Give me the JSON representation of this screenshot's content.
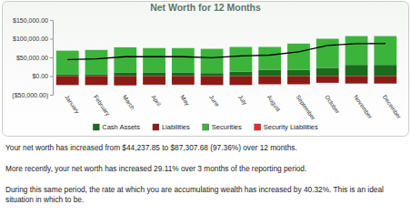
{
  "chart_data": {
    "type": "bar",
    "title": "Net Worth for 12 Months",
    "categories": [
      "January",
      "February",
      "March",
      "April",
      "May",
      "June",
      "July",
      "August",
      "September",
      "October",
      "November",
      "December"
    ],
    "stacked": true,
    "grid": false,
    "legend": "bottom",
    "series": [
      {
        "name": "Cash Assets",
        "color": "#1c6a1c",
        "values": [
          5000,
          5000,
          10000,
          10000,
          10000,
          8000,
          12000,
          17000,
          17000,
          22000,
          30000,
          30000
        ]
      },
      {
        "name": "Liabilities",
        "color": "#8e1a16",
        "values": [
          -24000,
          -24000,
          -25000,
          -23000,
          -23000,
          -24000,
          -24000,
          -22000,
          -22000,
          -18000,
          -20000,
          -20000
        ]
      },
      {
        "name": "Securities",
        "color": "#3cb43c",
        "values": [
          63000,
          65000,
          67000,
          65000,
          65000,
          65000,
          66000,
          61000,
          70000,
          78000,
          77000,
          77000
        ]
      },
      {
        "name": "Security Liabilities",
        "color": "#f02828",
        "values": [
          0,
          0,
          0,
          0,
          0,
          0,
          0,
          0,
          0,
          0,
          0,
          0
        ]
      },
      {
        "type": "line",
        "color": "#000000",
        "values": [
          44237.85,
          46000,
          52000,
          52000,
          52000,
          49000,
          54000,
          56000,
          65000,
          82000,
          87000,
          87307.68
        ]
      }
    ],
    "ylim": [
      -50000,
      150000
    ],
    "yticks": [
      {
        "value": -50000,
        "label": "($50,000.00)"
      },
      {
        "value": 0,
        "label": "$0.00"
      },
      {
        "value": 50000,
        "label": "$50,000.00"
      },
      {
        "value": 100000,
        "label": "$100,000.00"
      },
      {
        "value": 150000,
        "label": "$150,000.00"
      }
    ],
    "annotations": [
      "Your net worth has increased from $44,237.85 to $87,307.68 (97.36%) over 12 months.",
      "More recently, your net worth has increased 29.11% over 3 months of the reporting period.",
      "During this same period, the rate at which you are accumulating wealth has increased by 40.32%.  This is an ideal situation in which to be."
    ]
  }
}
